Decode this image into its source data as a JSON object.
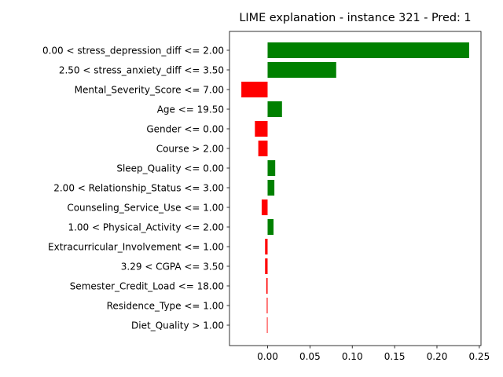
{
  "chart_data": {
    "type": "bar",
    "orientation": "horizontal",
    "title": "LIME explanation - instance 321 - Pred: 1",
    "xlabel": "",
    "ylabel": "",
    "xlim": [
      -0.045,
      0.252
    ],
    "xticks": [
      0.0,
      0.05,
      0.1,
      0.15,
      0.2,
      0.25
    ],
    "xtick_labels": [
      "0.00",
      "0.05",
      "0.10",
      "0.15",
      "0.20",
      "0.25"
    ],
    "grid": false,
    "legend": "none",
    "colors": {
      "positive": "#008000",
      "negative": "#ff0000"
    },
    "categories": [
      "0.00 < stress_depression_diff <= 2.00",
      "2.50 < stress_anxiety_diff <= 3.50",
      "Mental_Severity_Score <= 7.00",
      "Age <= 19.50",
      "Gender <= 0.00",
      "Course > 2.00",
      "Sleep_Quality <= 0.00",
      "2.00 < Relationship_Status <= 3.00",
      "Counseling_Service_Use <= 1.00",
      "1.00 < Physical_Activity <= 2.00",
      "Extracurricular_Involvement <= 1.00",
      "3.29 < CGPA <= 3.50",
      "Semester_Credit_Load <= 18.00",
      "Residence_Type <= 1.00",
      "Diet_Quality > 1.00"
    ],
    "values": [
      0.238,
      0.081,
      -0.031,
      0.017,
      -0.015,
      -0.011,
      0.009,
      0.008,
      -0.007,
      0.007,
      -0.003,
      -0.003,
      -0.0015,
      -0.001,
      -0.0008
    ]
  }
}
